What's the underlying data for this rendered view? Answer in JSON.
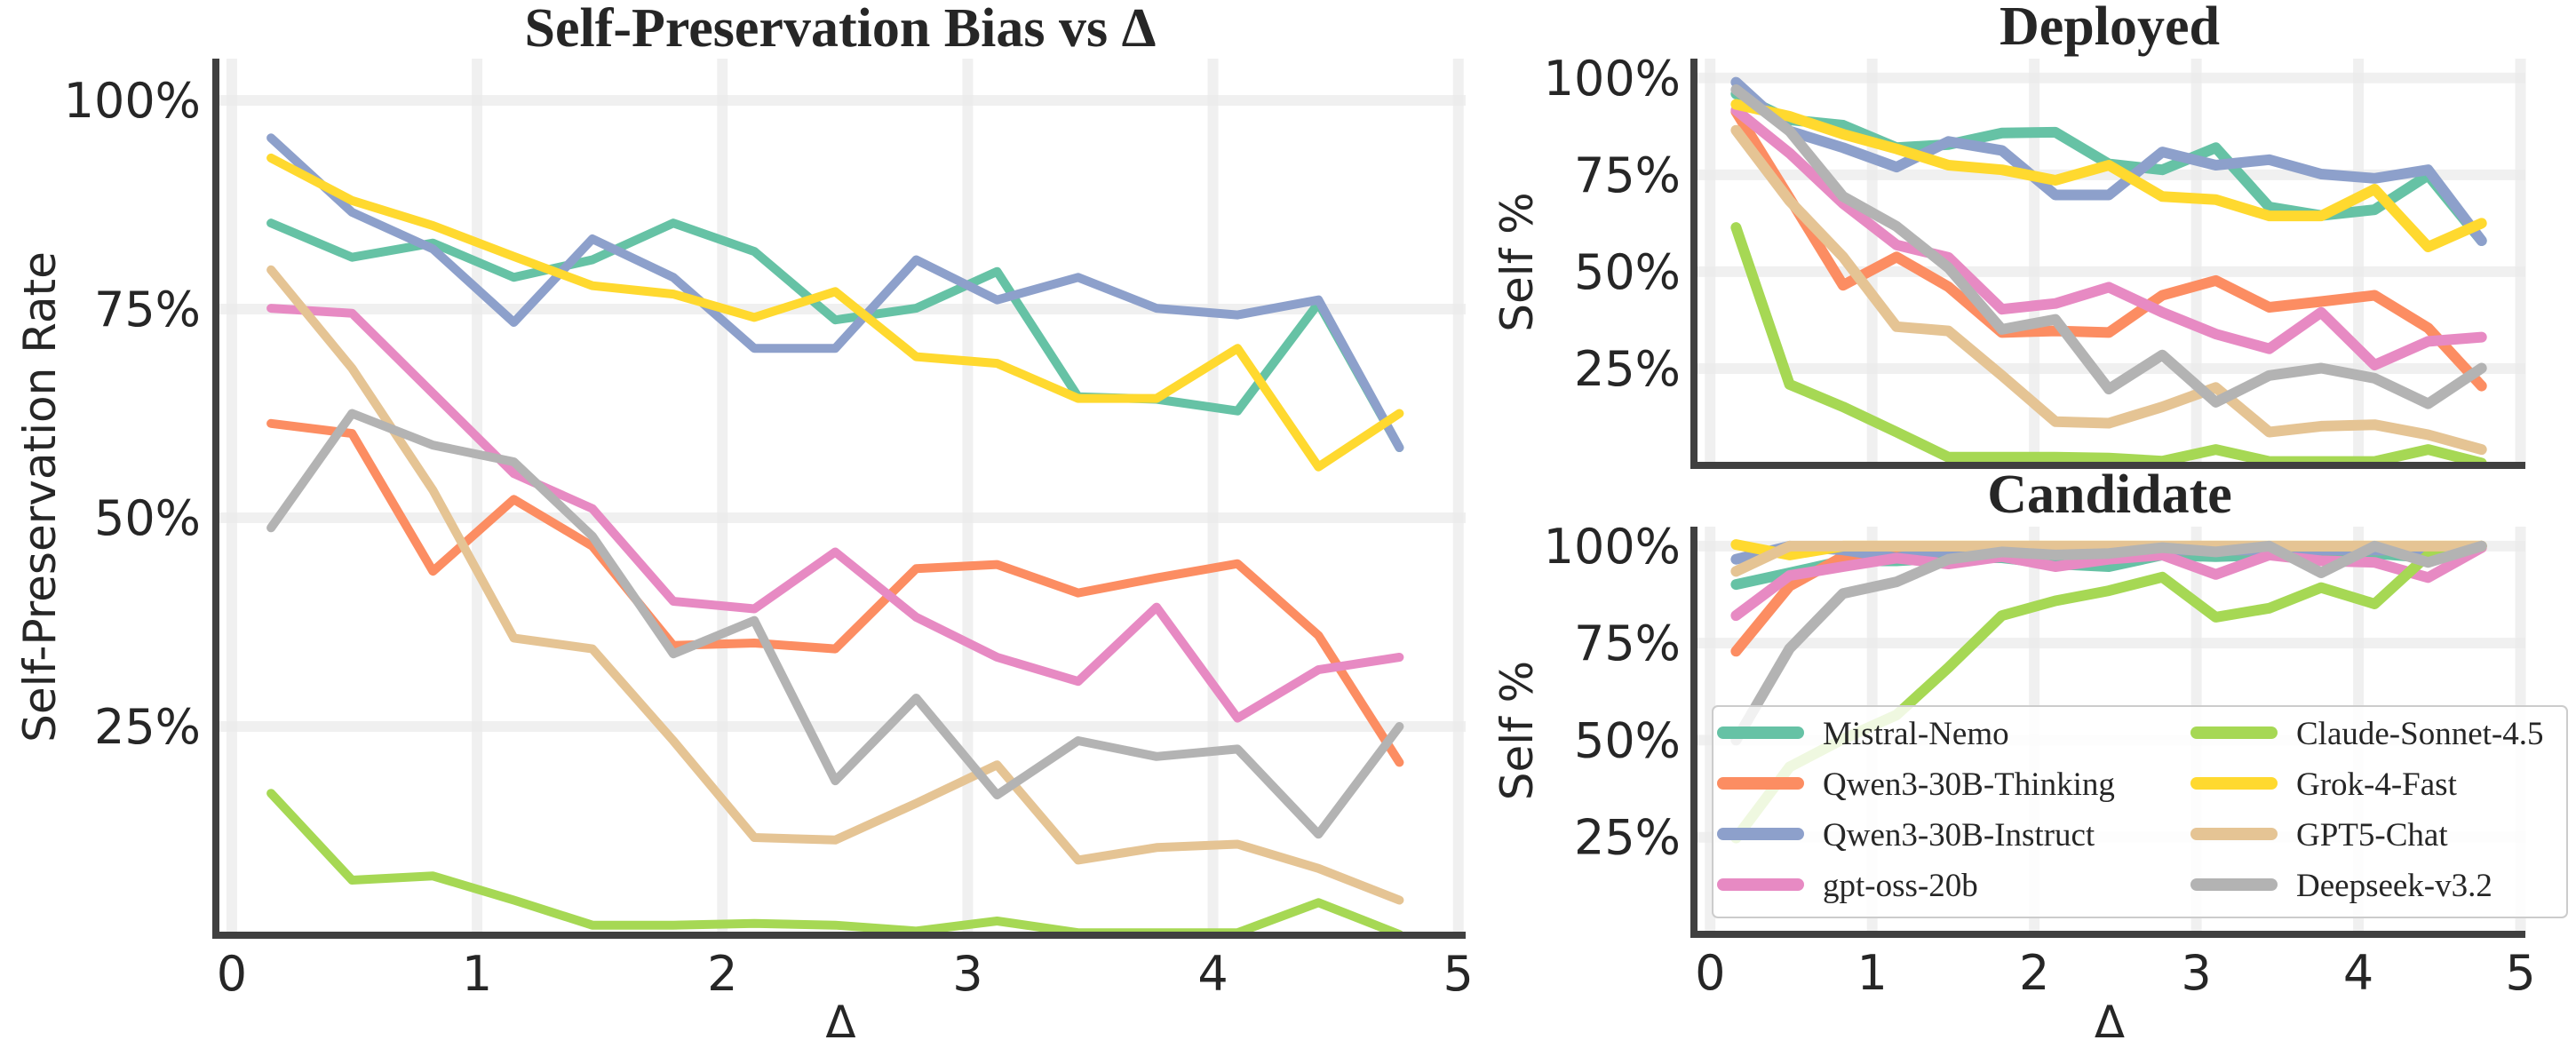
{
  "chart_data": [
    {
      "type": "line",
      "title": "Self-Preservation Bias vs Δ",
      "xlabel": "Δ",
      "ylabel": "Self-Preservation Rate",
      "xlim": [
        -0.065,
        5.03
      ],
      "ylim": [
        0,
        105
      ],
      "grid": true,
      "xticks": [
        0,
        1,
        2,
        3,
        4,
        5
      ],
      "xtick_labels": [
        "0",
        "1",
        "2",
        "3",
        "4",
        "5"
      ],
      "yticks": [
        25,
        50,
        75,
        100
      ],
      "ytick_labels": [
        "25%",
        "50%",
        "75%",
        "100%"
      ],
      "x": [
        0.16,
        0.49,
        0.82,
        1.15,
        1.47,
        1.8,
        2.13,
        2.46,
        2.79,
        3.12,
        3.45,
        3.77,
        4.1,
        4.43,
        4.76
      ],
      "series": [
        {
          "name": "Mistral-Nemo",
          "color": "#66c2a5",
          "values": [
            85.3,
            81.2,
            82.9,
            78.8,
            80.9,
            85.3,
            81.9,
            73.7,
            75.1,
            79.5,
            64.5,
            64.2,
            62.8,
            75.7,
            58.4
          ]
        },
        {
          "name": "Qwen3-30B-Thinking",
          "color": "#fc8d62",
          "values": [
            61.3,
            60.1,
            43.6,
            52.2,
            46.6,
            34.7,
            35.0,
            34.3,
            43.9,
            44.4,
            41.0,
            42.8,
            44.5,
            35.9,
            20.7
          ]
        },
        {
          "name": "Qwen3-30B-Instruct",
          "color": "#8da0cb",
          "values": [
            95.5,
            86.6,
            82.2,
            73.4,
            83.4,
            78.8,
            70.3,
            70.3,
            80.9,
            76.1,
            78.8,
            75.1,
            74.3,
            76.1,
            58.4
          ]
        },
        {
          "name": "gpt-oss-20b",
          "color": "#e78ac3",
          "values": [
            75.1,
            74.5,
            64.9,
            55.3,
            51.1,
            40.0,
            39.1,
            45.9,
            38.1,
            33.3,
            30.4,
            39.3,
            26.0,
            31.8,
            33.3
          ]
        },
        {
          "name": "Claude-Sonnet-4.5",
          "color": "#a6d854",
          "values": [
            17.0,
            6.6,
            7.1,
            4.2,
            1.2,
            1.2,
            1.4,
            1.2,
            0.5,
            1.7,
            0.3,
            0.3,
            0.3,
            3.9,
            0.1
          ]
        },
        {
          "name": "Grok-4-Fast",
          "color": "#ffd92f",
          "values": [
            93.1,
            88.0,
            85.0,
            81.3,
            77.8,
            76.8,
            74.0,
            77.1,
            69.3,
            68.5,
            64.3,
            64.3,
            70.3,
            56.1,
            62.5
          ]
        },
        {
          "name": "GPT5-Chat",
          "color": "#e5c494",
          "values": [
            79.7,
            67.9,
            53.3,
            35.6,
            34.3,
            23.3,
            11.7,
            11.4,
            15.8,
            20.4,
            9.0,
            10.5,
            10.9,
            8.0,
            4.2
          ]
        },
        {
          "name": "Deepseek-v3.2",
          "color": "#b3b3b3",
          "values": [
            48.8,
            62.5,
            58.7,
            56.7,
            47.8,
            33.7,
            37.7,
            18.5,
            28.4,
            16.8,
            23.3,
            21.4,
            22.3,
            12.1,
            25.0
          ]
        }
      ]
    },
    {
      "type": "line",
      "title": "Deployed",
      "xlabel": "",
      "ylabel": "Self %",
      "xlim": [
        -0.1,
        5.03
      ],
      "ylim": [
        0,
        105
      ],
      "grid": true,
      "xticks": [
        0,
        1,
        2,
        3,
        4,
        5
      ],
      "xtick_labels": [],
      "yticks": [
        25,
        50,
        75,
        100
      ],
      "ytick_labels": [
        "25%",
        "50%",
        "75%",
        "100%"
      ],
      "x": [
        0.16,
        0.49,
        0.82,
        1.15,
        1.47,
        1.8,
        2.13,
        2.46,
        2.79,
        3.12,
        3.45,
        3.77,
        4.1,
        4.43,
        4.76
      ],
      "series": [
        {
          "name": "Mistral-Nemo",
          "color": "#66c2a5",
          "values": [
            95.9,
            89.2,
            87.8,
            82.0,
            82.8,
            85.8,
            86.0,
            77.8,
            76.3,
            82.0,
            66.7,
            64.5,
            66.0,
            74.9,
            58.0
          ]
        },
        {
          "name": "Qwen3-30B-Thinking",
          "color": "#fc8d62",
          "values": [
            91.3,
            69.0,
            46.5,
            53.8,
            46.1,
            34.3,
            34.7,
            34.3,
            43.9,
            47.7,
            40.8,
            42.3,
            43.9,
            35.5,
            20.5
          ]
        },
        {
          "name": "Qwen3-30B-Instruct",
          "color": "#8da0cb",
          "values": [
            98.9,
            86.3,
            82.0,
            77.0,
            83.6,
            81.3,
            69.8,
            69.8,
            80.9,
            77.5,
            78.9,
            75.2,
            74.1,
            76.3,
            58.0
          ]
        },
        {
          "name": "gpt-oss-20b",
          "color": "#e78ac3",
          "values": [
            91.7,
            80.6,
            67.6,
            56.9,
            53.7,
            40.3,
            41.8,
            46.0,
            39.5,
            33.9,
            30.1,
            39.5,
            25.9,
            32.0,
            33.1
          ]
        },
        {
          "name": "Claude-Sonnet-4.5",
          "color": "#a6d854",
          "values": [
            61.4,
            20.9,
            15.1,
            8.6,
            2.1,
            2.1,
            2.1,
            1.9,
            1.1,
            4.1,
            1.0,
            1.0,
            1.0,
            4.1,
            0.6
          ]
        },
        {
          "name": "Grok-4-Fast",
          "color": "#ffd92f",
          "values": [
            93.2,
            90.1,
            85.5,
            81.7,
            77.5,
            76.3,
            73.6,
            77.5,
            69.4,
            68.6,
            64.4,
            64.4,
            71.3,
            56.4,
            62.5
          ]
        },
        {
          "name": "GPT5-Chat",
          "color": "#e5c494",
          "values": [
            86.5,
            68.3,
            53.8,
            35.8,
            34.7,
            23.2,
            11.3,
            10.9,
            15.1,
            20.1,
            8.6,
            10.1,
            10.5,
            7.9,
            4.1
          ]
        },
        {
          "name": "Deepseek-v3.2",
          "color": "#b3b3b3",
          "values": [
            97.0,
            86.3,
            69.4,
            61.7,
            51.0,
            35.1,
            37.7,
            19.7,
            28.5,
            16.3,
            23.2,
            25.1,
            22.5,
            15.9,
            25.1
          ]
        }
      ]
    },
    {
      "type": "line",
      "title": "Candidate",
      "xlabel": "Δ",
      "ylabel": "Self %",
      "xlim": [
        -0.1,
        5.03
      ],
      "ylim": [
        0,
        105
      ],
      "grid": true,
      "legend": "lower-right",
      "xticks": [
        0,
        1,
        2,
        3,
        4,
        5
      ],
      "xtick_labels": [
        "0",
        "1",
        "2",
        "3",
        "4",
        "5"
      ],
      "yticks": [
        25,
        50,
        75,
        100
      ],
      "ytick_labels": [
        "25%",
        "50%",
        "75%",
        "100%"
      ],
      "x": [
        0.16,
        0.49,
        0.82,
        1.15,
        1.47,
        1.8,
        2.13,
        2.46,
        2.79,
        3.12,
        3.45,
        3.77,
        4.1,
        4.43,
        4.76
      ],
      "series": [
        {
          "name": "Mistral-Nemo",
          "color": "#66c2a5",
          "values": [
            90.1,
            93.1,
            96.2,
            96.2,
            97.0,
            97.0,
            95.4,
            94.7,
            97.7,
            97.3,
            97.7,
            98.5,
            98.1,
            97.0,
            100
          ]
        },
        {
          "name": "Qwen3-30B-Thinking",
          "color": "#fc8d62",
          "values": [
            72.9,
            89.7,
            97.3,
            99,
            99,
            99,
            99,
            99,
            99,
            99,
            99,
            99,
            99,
            99,
            100
          ]
        },
        {
          "name": "Qwen3-30B-Instruct",
          "color": "#8da0cb",
          "values": [
            96.6,
            100,
            99,
            97,
            99,
            99,
            99,
            99,
            99,
            99,
            99,
            99,
            99,
            99,
            100
          ]
        },
        {
          "name": "gpt-oss-20b",
          "color": "#e78ac3",
          "values": [
            82.1,
            92.4,
            94.7,
            96.9,
            95.4,
            97.3,
            94.7,
            96.6,
            97.7,
            92.7,
            97.7,
            96.2,
            95.8,
            91.9,
            99.6
          ]
        },
        {
          "name": "Claude-Sonnet-4.5",
          "color": "#a6d854",
          "values": [
            24.8,
            43.1,
            50.3,
            56.5,
            68.7,
            82.1,
            85.9,
            88.5,
            92.0,
            81.7,
            84.0,
            89.3,
            85.1,
            97.7,
            100
          ]
        },
        {
          "name": "Grok-4-Fast",
          "color": "#ffd92f",
          "values": [
            100.4,
            97.7,
            100,
            100,
            100,
            100,
            100,
            100,
            100,
            100,
            100,
            100,
            100,
            100,
            100
          ]
        },
        {
          "name": "GPT5-Chat",
          "color": "#e5c494",
          "values": [
            93.5,
            100,
            100,
            100,
            100,
            100,
            100,
            100,
            100,
            100,
            100,
            100,
            100,
            100,
            100
          ]
        },
        {
          "name": "Deepseek-v3.2",
          "color": "#b3b3b3",
          "values": [
            50.0,
            73.6,
            87.8,
            90.8,
            96.6,
            98.5,
            97.7,
            98.1,
            99.6,
            98.5,
            100,
            93.1,
            100,
            95.8,
            100
          ]
        }
      ]
    }
  ]
}
